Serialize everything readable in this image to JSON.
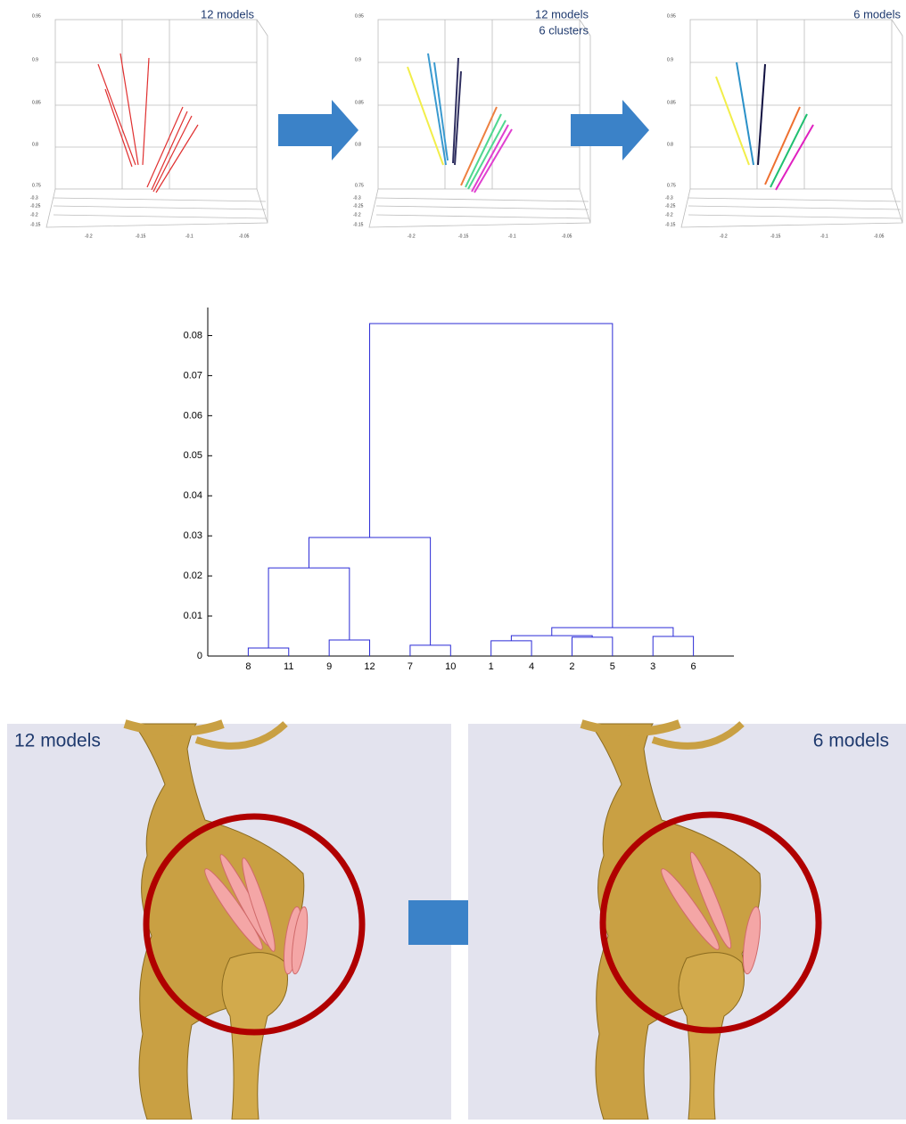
{
  "plots3d": [
    {
      "caption": [
        "12 models"
      ]
    },
    {
      "caption": [
        "12 models",
        "6 clusters"
      ]
    },
    {
      "caption": [
        "6 models"
      ]
    }
  ],
  "plot_ticks": {
    "z": [
      "0.95",
      "0.9",
      "0.85",
      "0.8",
      "0.75"
    ],
    "y": [
      "-0.3",
      "-0.25",
      "-0.2",
      "-0.15"
    ],
    "x": [
      "-0.2",
      "-0.15",
      "-0.1",
      "-0.05"
    ]
  },
  "chart_data": {
    "type": "dendrogram",
    "color": "#2b2bd6",
    "categories": [
      "8",
      "11",
      "9",
      "12",
      "7",
      "10",
      "1",
      "4",
      "2",
      "5",
      "3",
      "6"
    ],
    "merges": [
      [
        0,
        1,
        0.002
      ],
      [
        4,
        5,
        0.0027
      ],
      [
        6,
        7,
        0.0038
      ],
      [
        2,
        3,
        0.004
      ],
      [
        8,
        9,
        0.0047
      ],
      [
        10,
        11,
        0.0049
      ],
      [
        14,
        16,
        0.0051
      ],
      [
        18,
        17,
        0.0071
      ],
      [
        12,
        15,
        0.022
      ],
      [
        20,
        13,
        0.0296
      ],
      [
        21,
        19,
        0.083
      ]
    ],
    "ylim": [
      0,
      0.087
    ],
    "yticks": [
      0,
      0.01,
      0.02,
      0.03,
      0.04,
      0.05,
      0.06,
      0.07,
      0.08
    ]
  },
  "renders": [
    {
      "label": "12 models"
    },
    {
      "label": "6 models"
    }
  ]
}
